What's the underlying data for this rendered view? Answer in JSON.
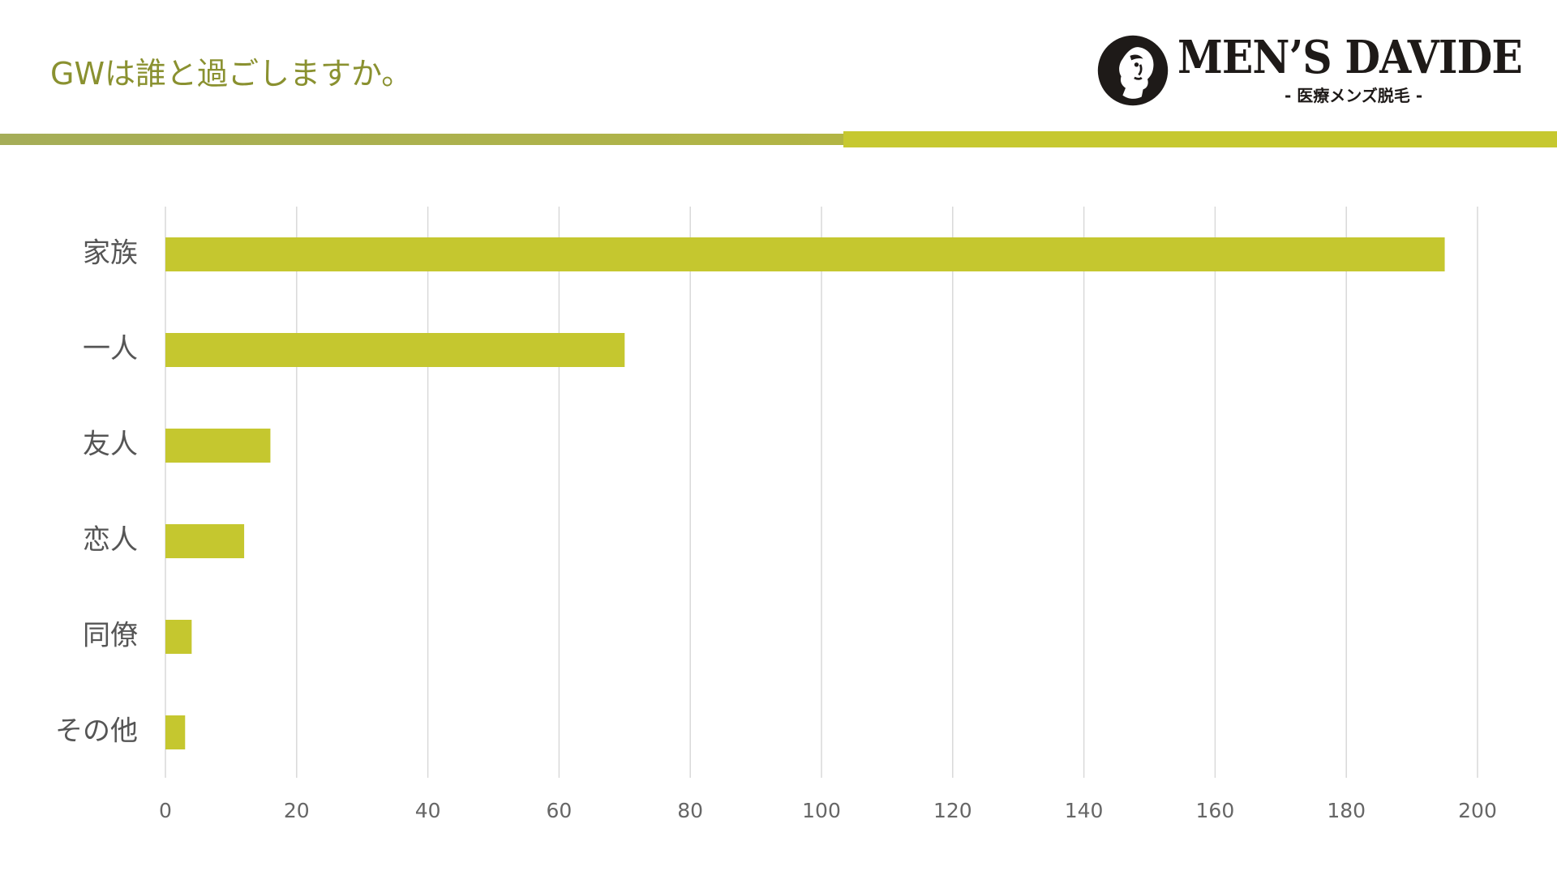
{
  "title": "GWは誰と過ごしますか。",
  "logo": {
    "wordmark": "MEN’S DAVIDE",
    "subtitle": "- 医療メンズ脱毛 -",
    "icon": "david-bust-medallion-icon"
  },
  "colors": {
    "bar": "#c5c72f",
    "title": "#8a9130",
    "band_left": "#a8ae55",
    "band_right": "#c6c830",
    "grid": "#d9d9d9",
    "logo": "#1e1a18"
  },
  "chart_data": {
    "type": "bar",
    "orientation": "horizontal",
    "title": "GWは誰と過ごしますか。",
    "xlabel": "",
    "ylabel": "",
    "categories": [
      "家族",
      "一人",
      "友人",
      "恋人",
      "同僚",
      "その他"
    ],
    "values": [
      195,
      70,
      16,
      12,
      4,
      3
    ],
    "xlim": [
      0,
      200
    ],
    "ticks": [
      0,
      20,
      40,
      60,
      80,
      100,
      120,
      140,
      160,
      180,
      200
    ],
    "grid": "vertical",
    "legend": "none"
  }
}
